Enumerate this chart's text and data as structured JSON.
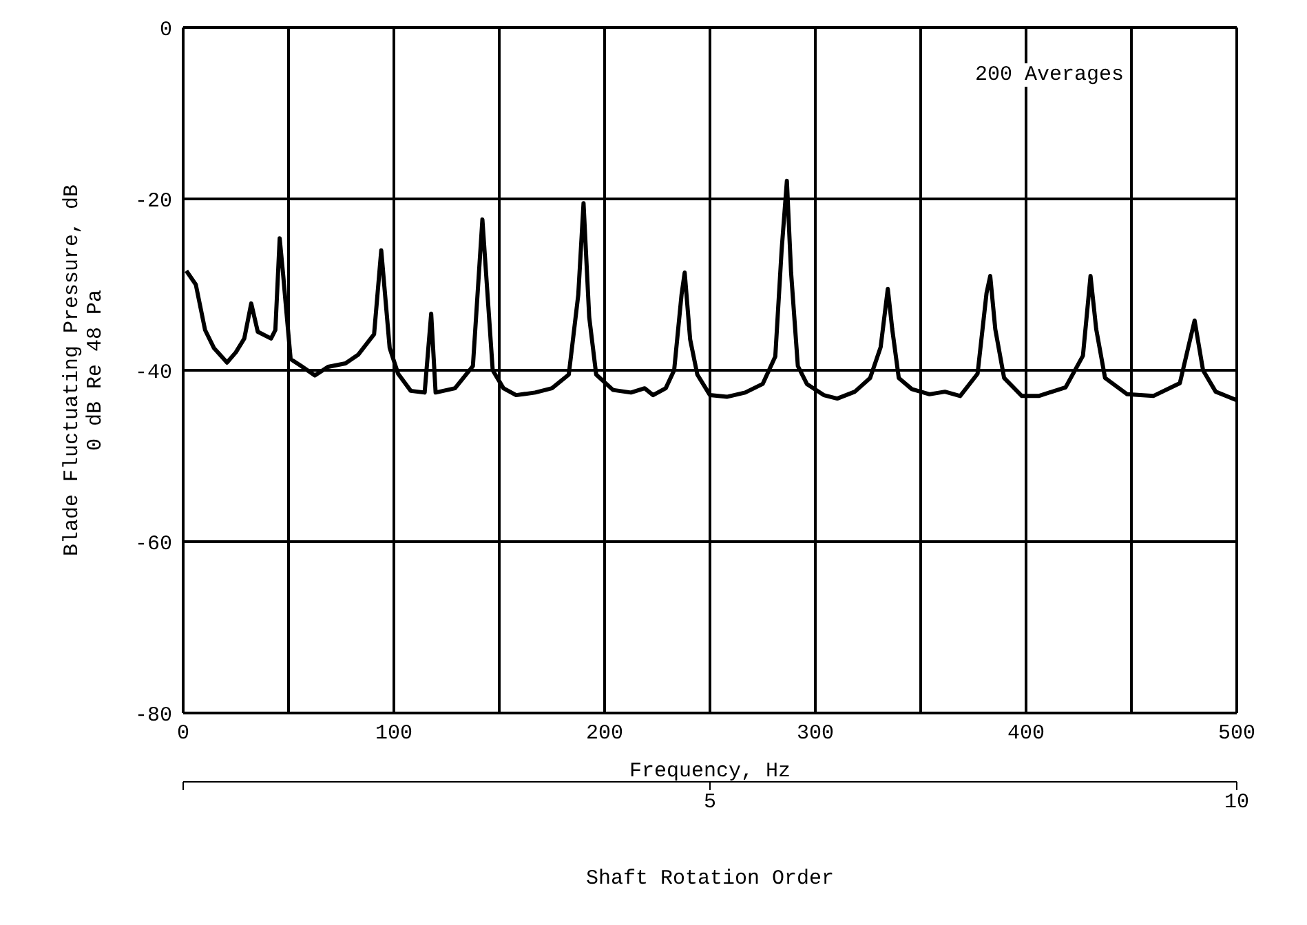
{
  "chart_data": {
    "type": "line",
    "xlabel": "Frequency, Hz",
    "ylabel": "Blade Fluctuating Pressure, dB\n0 dB Re 48 Pa",
    "x2label": "Shaft Rotation Order",
    "annotations": [
      "200 Averages"
    ],
    "xlim": [
      0,
      500
    ],
    "xticks": [
      0,
      {
        "value": 50,
        "label": null
      },
      100,
      {
        "value": 150,
        "label": null
      },
      200,
      {
        "value": 250,
        "label": null
      },
      300,
      {
        "value": 350,
        "label": null
      },
      400,
      {
        "value": 450,
        "label": null
      },
      500
    ],
    "ylim": [
      -80,
      0
    ],
    "yticks": [
      -80,
      -60,
      -40,
      -20,
      0
    ],
    "x2lim": [
      0,
      10
    ],
    "x2ticks": [
      {
        "value": 0,
        "label": null
      },
      5,
      10
    ],
    "grid": true,
    "marker": "none",
    "line_style": "solid",
    "x": [
      1.5,
      6,
      10.4,
      14.6,
      20.8,
      25,
      29,
      32.3,
      35.4,
      41.7,
      43.75,
      45.8,
      47.5,
      49,
      51,
      56,
      62.5,
      68.75,
      77,
      83,
      90.6,
      94,
      98,
      102,
      108,
      114.6,
      117.7,
      119.8,
      129,
      137.5,
      142,
      146.9,
      152,
      158,
      167,
      175,
      183,
      187.5,
      190,
      192.7,
      196,
      204,
      212.5,
      219,
      223,
      229,
      233,
      236.5,
      238,
      240.6,
      244,
      250,
      258,
      266.7,
      275,
      281,
      284,
      286.5,
      288.5,
      291.7,
      296,
      304,
      310.4,
      318.75,
      326,
      331,
      334.4,
      336.5,
      339.6,
      345.8,
      354.2,
      361.5,
      368.75,
      377,
      381.25,
      383,
      385.4,
      389.6,
      398,
      406,
      418.75,
      427,
      430.6,
      433.3,
      437.5,
      448,
      460.4,
      473,
      477,
      480,
      484,
      490,
      500
    ],
    "series": [
      {
        "color": "#000000",
        "values": [
          -28.4,
          -30,
          -35.3,
          -37.4,
          -39.1,
          -37.9,
          -36.3,
          -32.2,
          -35.5,
          -36.3,
          -35.3,
          -24.6,
          -29,
          -33.2,
          -38.7,
          -39.5,
          -40.6,
          -39.6,
          -39.2,
          -38.2,
          -35.8,
          -26,
          -37.4,
          -40.4,
          -42.4,
          -42.6,
          -33.4,
          -42.6,
          -42.1,
          -39.5,
          -22.4,
          -40,
          -42.1,
          -42.9,
          -42.6,
          -42.1,
          -40.5,
          -31.2,
          -20.5,
          -33.8,
          -40.5,
          -42.3,
          -42.6,
          -42.1,
          -42.9,
          -42.1,
          -40,
          -31.2,
          -28.6,
          -36.4,
          -40.5,
          -42.9,
          -43.1,
          -42.6,
          -41.6,
          -38.4,
          -26,
          -17.9,
          -28.6,
          -39.5,
          -41.6,
          -42.9,
          -43.3,
          -42.5,
          -40.9,
          -37.3,
          -30.5,
          -35.2,
          -40.9,
          -42.2,
          -42.8,
          -42.5,
          -43,
          -40.4,
          -31,
          -29,
          -35.2,
          -40.9,
          -43,
          -43,
          -42,
          -38.3,
          -29,
          -35.2,
          -40.9,
          -42.8,
          -43,
          -41.5,
          -37.3,
          -34.2,
          -40,
          -42.5,
          -43.5
        ]
      }
    ]
  }
}
